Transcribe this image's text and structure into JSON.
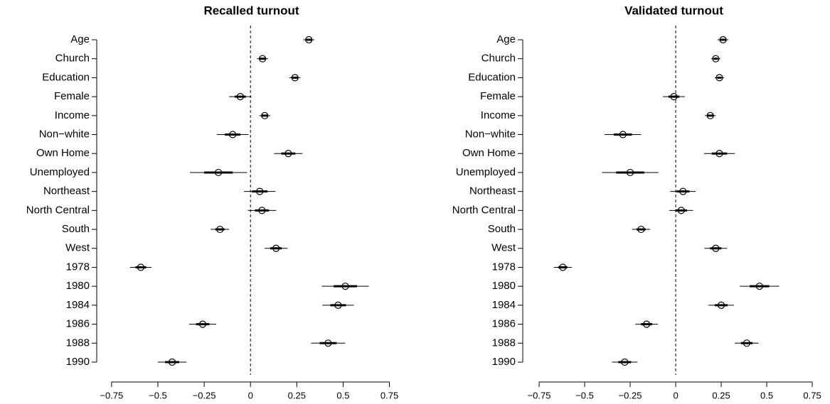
{
  "chart_data": [
    {
      "type": "dotwhisker",
      "title": "Recalled turnout",
      "categories": [
        "Age",
        "Church",
        "Education",
        "Female",
        "Income",
        "Non−white",
        "Own Home",
        "Unemployed",
        "Northeast",
        "North Central",
        "South",
        "West",
        "1978",
        "1980",
        "1984",
        "1986",
        "1988",
        "1990"
      ],
      "values": [
        0.315,
        0.065,
        0.24,
        -0.055,
        0.077,
        -0.096,
        0.204,
        -0.173,
        0.05,
        0.062,
        -0.165,
        0.138,
        -0.592,
        0.512,
        0.473,
        -0.258,
        0.419,
        -0.423
      ],
      "errors": [
        0.03,
        0.03,
        0.03,
        0.06,
        0.03,
        0.085,
        0.077,
        0.154,
        0.085,
        0.077,
        0.05,
        0.062,
        0.058,
        0.127,
        0.085,
        0.073,
        0.092,
        0.077
      ],
      "errors_inner": [
        0.015,
        0.015,
        0.015,
        0.03,
        0.015,
        0.042,
        0.038,
        0.077,
        0.042,
        0.038,
        0.025,
        0.031,
        0.029,
        0.063,
        0.042,
        0.036,
        0.046,
        0.038
      ],
      "xlim": [
        -0.83,
        0.84
      ],
      "xticks": [
        {
          "value": -0.75,
          "label": "−0.75"
        },
        {
          "value": -0.5,
          "label": "−0.5"
        },
        {
          "value": -0.25,
          "label": "−0.25"
        },
        0,
        0.25,
        0.5,
        0.75
      ],
      "refline": 0,
      "color": "#000000"
    },
    {
      "type": "dotwhisker",
      "title": "Validated turnout",
      "categories": [
        "Age",
        "Church",
        "Education",
        "Female",
        "Income",
        "Non−white",
        "Own Home",
        "Unemployed",
        "Northeast",
        "North Central",
        "South",
        "West",
        "1978",
        "1980",
        "1984",
        "1986",
        "1988",
        "1990"
      ],
      "values": [
        0.26,
        0.22,
        0.24,
        -0.01,
        0.19,
        -0.29,
        0.24,
        -0.25,
        0.04,
        0.03,
        -0.19,
        0.22,
        -0.62,
        0.46,
        0.25,
        -0.16,
        0.39,
        -0.28
      ],
      "errors": [
        0.03,
        0.025,
        0.025,
        0.06,
        0.03,
        0.1,
        0.085,
        0.155,
        0.07,
        0.065,
        0.05,
        0.062,
        0.05,
        0.108,
        0.07,
        0.062,
        0.065,
        0.07
      ],
      "errors_inner": [
        0.015,
        0.012,
        0.012,
        0.03,
        0.015,
        0.05,
        0.042,
        0.077,
        0.035,
        0.032,
        0.025,
        0.031,
        0.025,
        0.054,
        0.035,
        0.031,
        0.032,
        0.035
      ],
      "xlim": [
        -0.84,
        0.82
      ],
      "xticks": [
        {
          "value": -0.75,
          "label": "−0.75"
        },
        {
          "value": -0.5,
          "label": "−0.5"
        },
        {
          "value": -0.25,
          "label": "−0.25"
        },
        0,
        0.25,
        0.5,
        0.75
      ],
      "refline": 0,
      "color": "#000000"
    }
  ]
}
